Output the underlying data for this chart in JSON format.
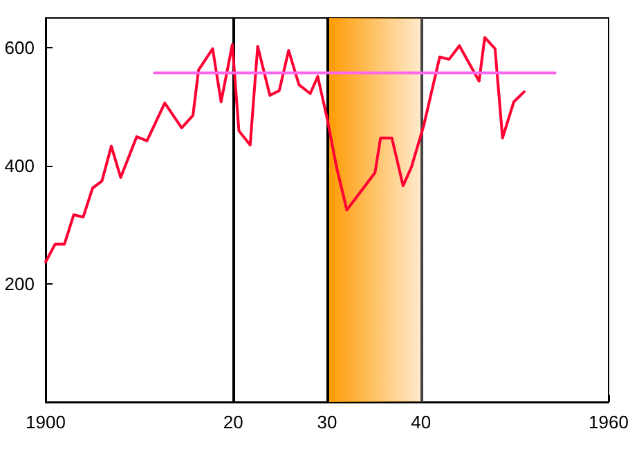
{
  "chart_data": {
    "type": "line",
    "xlim": [
      1900,
      1960
    ],
    "ylim": [
      0,
      650
    ],
    "xticks": [
      {
        "value": 1900,
        "label": "1900"
      },
      {
        "value": 1920,
        "label": "20"
      },
      {
        "value": 1930,
        "label": "30"
      },
      {
        "value": 1940,
        "label": "40"
      },
      {
        "value": 1960,
        "label": "1960"
      }
    ],
    "yticks": [
      200,
      400,
      600
    ],
    "series": [
      {
        "color": "#ff0033",
        "x": [
          1900,
          1901,
          1902,
          1903,
          1904,
          1905,
          1906,
          1907,
          1908,
          1909.7,
          1910.8,
          1912.7,
          1914.5,
          1915.7,
          1916.3,
          1917.8,
          1918.7,
          1919.9,
          1920.6,
          1921.8,
          1922.6,
          1923.9,
          1924.9,
          1925.9,
          1927,
          1928.2,
          1929,
          1930,
          1931,
          1932.1,
          1935.1,
          1935.7,
          1936.9,
          1938.1,
          1939,
          1940.3,
          1942,
          1943,
          1944.1,
          1946.2,
          1946.8,
          1947.9,
          1948.7,
          1949.9,
          1951
        ],
        "values": [
          237,
          267,
          267,
          317,
          313,
          362,
          374,
          433,
          380,
          449,
          442,
          506,
          464,
          485,
          562,
          598,
          508,
          605,
          459,
          435,
          602,
          519,
          527,
          595,
          537,
          522,
          551,
          480,
          398,
          325,
          388,
          447,
          447,
          366,
          398,
          468,
          584,
          580,
          603,
          543,
          617,
          598,
          447,
          508,
          525
        ]
      },
      {
        "color": "#ff66ee",
        "x": [
          1911.6,
          1954.3
        ],
        "values": [
          557,
          557
        ]
      }
    ],
    "ref_lines": [
      {
        "axis": "x",
        "value": 1920,
        "color": "#000000"
      },
      {
        "axis": "x",
        "value": 1930,
        "color": "#000000"
      },
      {
        "axis": "x",
        "value": 1940,
        "color": "#444444"
      }
    ],
    "bands": [
      {
        "axis": "x",
        "from": 1930,
        "to": 1940,
        "color": "#ff9900"
      }
    ],
    "grid": false,
    "marker": "none",
    "line_style": "solid"
  }
}
